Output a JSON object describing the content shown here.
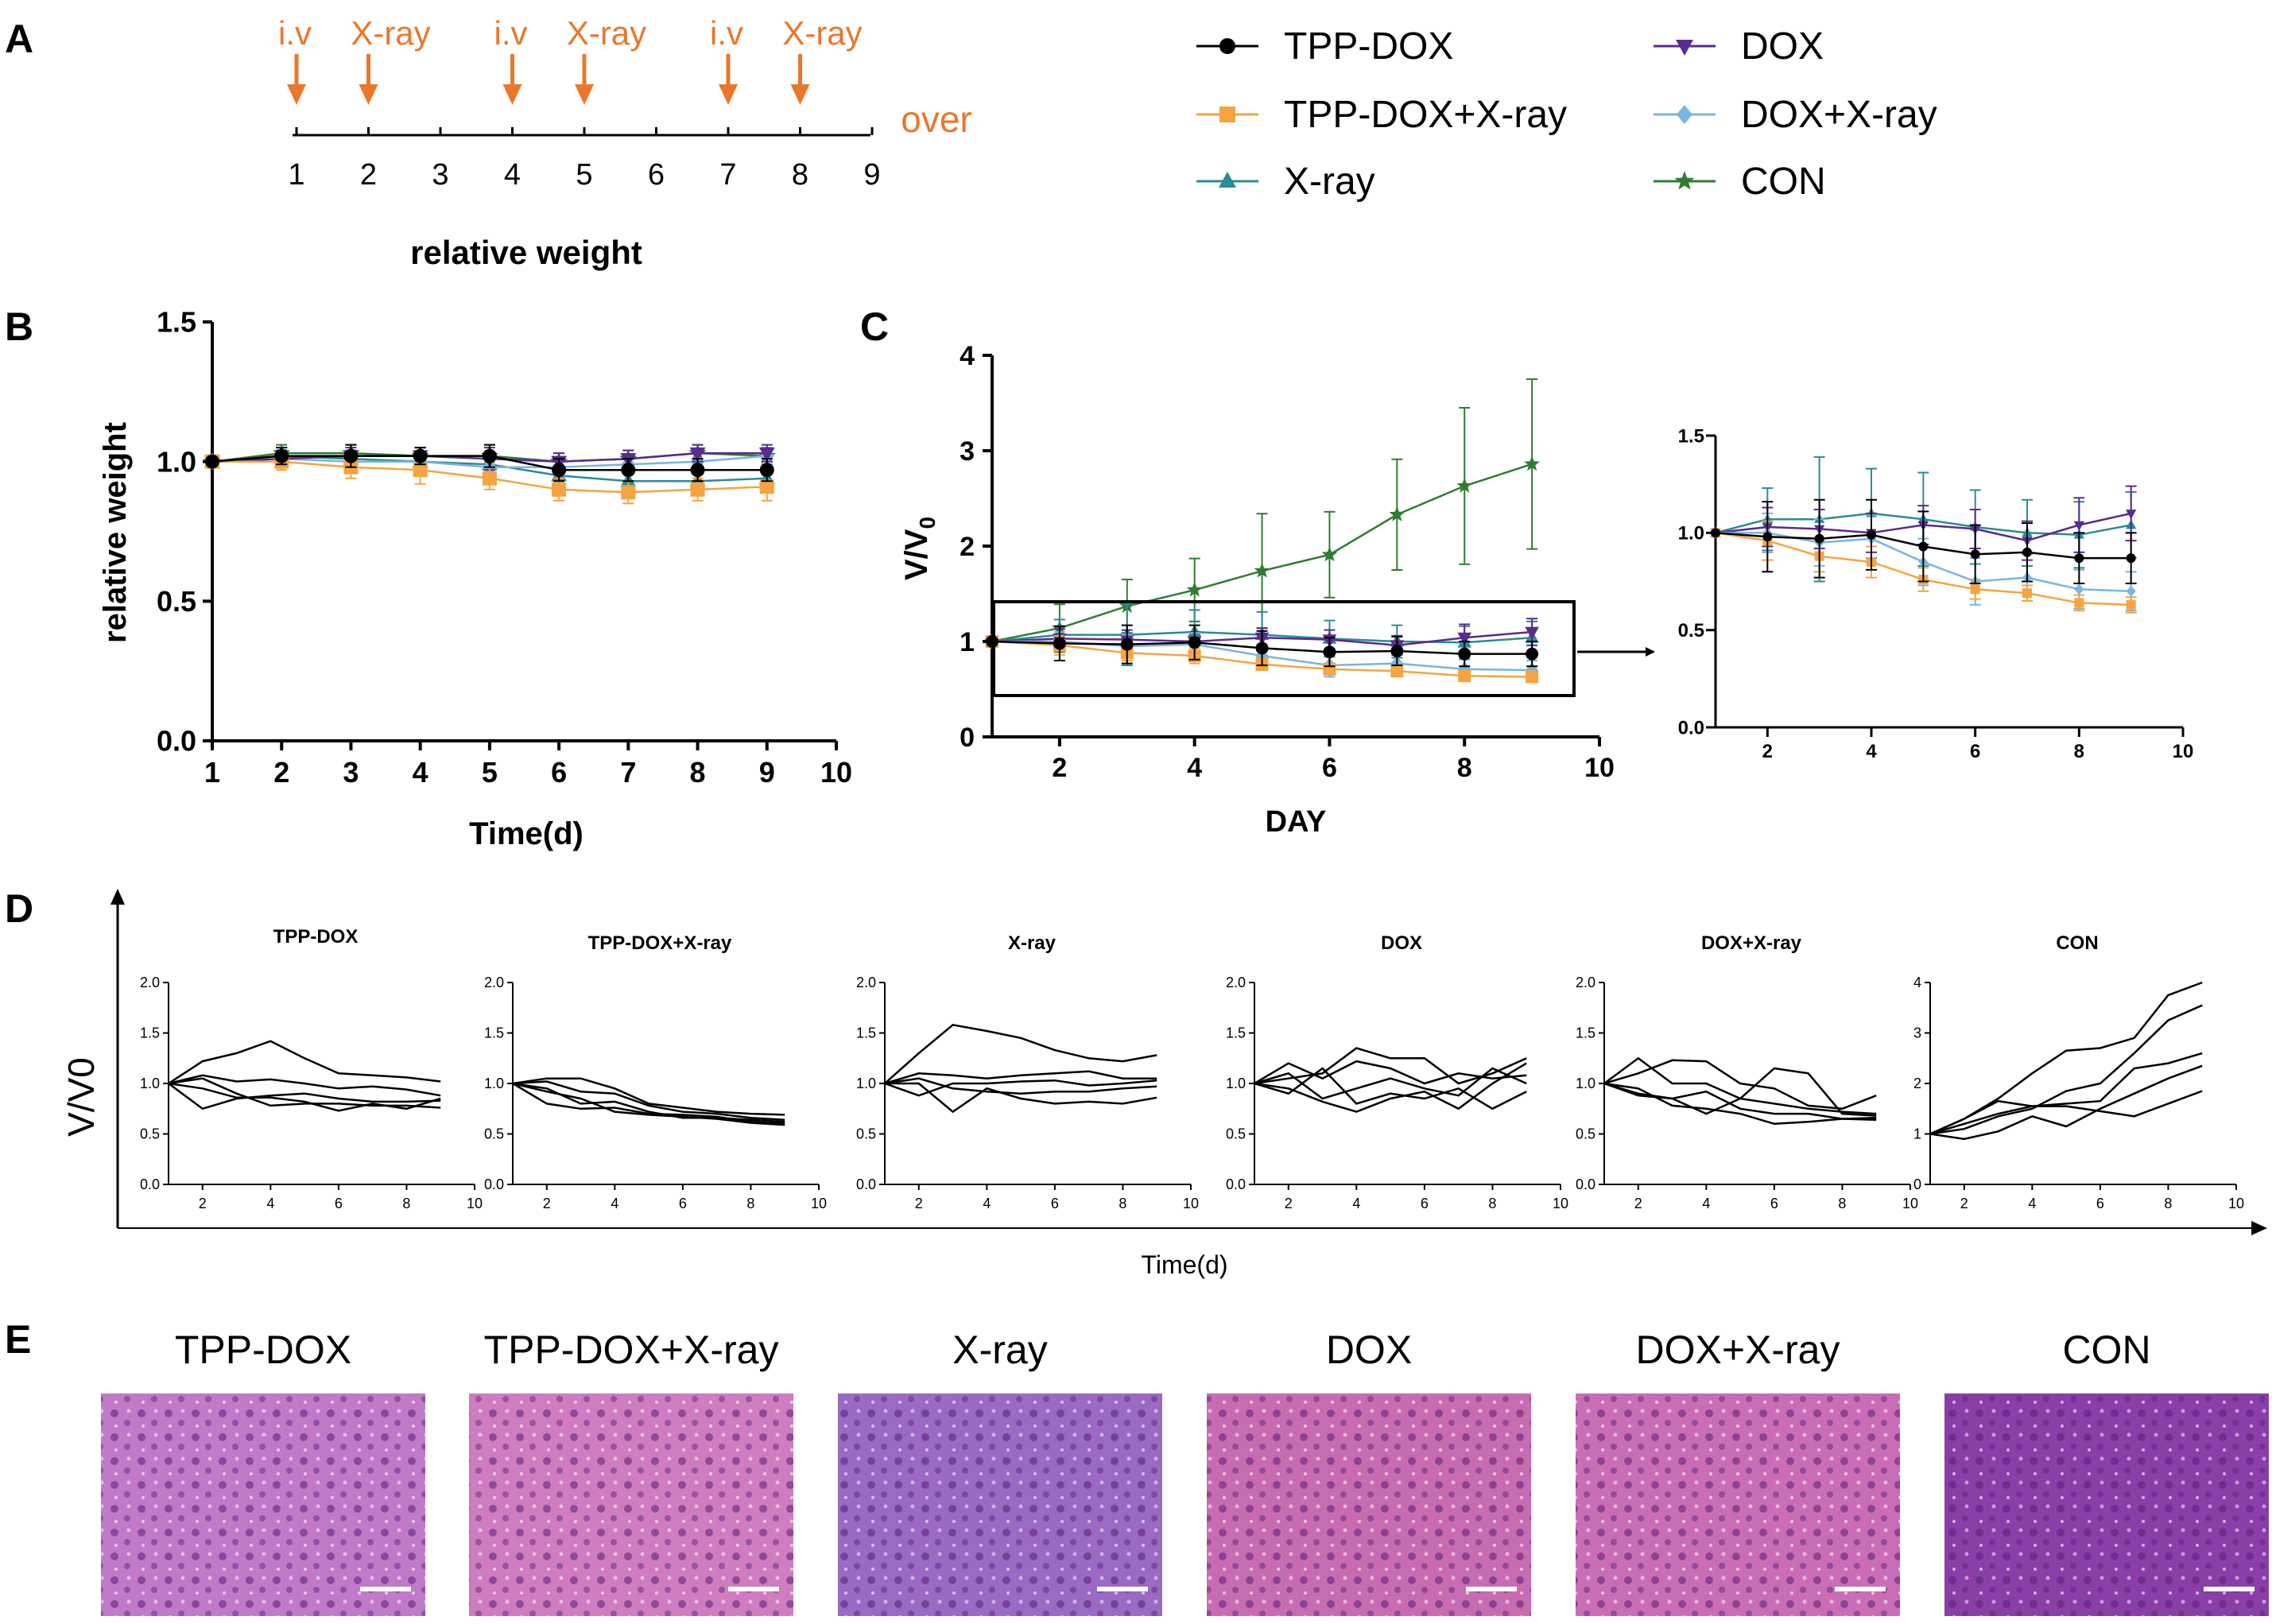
{
  "figure_letters": [
    "A",
    "B",
    "C",
    "D",
    "E"
  ],
  "colors": {
    "tpp_dox": "#000000",
    "tpp_dox_xray": "#f5a441",
    "xray": "#2a8c96",
    "dox": "#5b2a8e",
    "dox_xray": "#7ab4e0",
    "con": "#2f7d32",
    "timeline_accent": "#e9782b",
    "he_stain": "#b865b0"
  },
  "timeline": {
    "labels": [
      "i.v",
      "X-ray",
      "i.v",
      "X-ray",
      "i.v",
      "X-ray"
    ],
    "label_days": [
      1,
      2,
      4,
      5,
      7,
      8
    ],
    "ticks": [
      "1",
      "2",
      "3",
      "4",
      "5",
      "6",
      "7",
      "8",
      "9"
    ],
    "end_label": "over"
  },
  "legend": [
    {
      "label": "TPP-DOX",
      "marker": "circle",
      "color": "#000000"
    },
    {
      "label": "DOX",
      "marker": "triangle-down",
      "color": "#5b2a8e"
    },
    {
      "label": "TPP-DOX+X-ray",
      "marker": "square",
      "color": "#f5a441"
    },
    {
      "label": "DOX+X-ray",
      "marker": "diamond",
      "color": "#7ab4e0"
    },
    {
      "label": "X-ray",
      "marker": "triangle-up",
      "color": "#2a8c96"
    },
    {
      "label": "CON",
      "marker": "star",
      "color": "#2f7d32"
    }
  ],
  "chart_data": [
    {
      "id": "B",
      "type": "line",
      "title": "relative weight",
      "xlabel": "Time(d)",
      "ylabel": "relative weight",
      "xlim": [
        1,
        10
      ],
      "ylim": [
        0,
        1.5
      ],
      "xticks": [
        1,
        2,
        3,
        4,
        5,
        6,
        7,
        8,
        9,
        10
      ],
      "yticks": [
        "0.0",
        "0.5",
        "1.0",
        "1.5"
      ],
      "x": [
        1,
        2,
        3,
        4,
        5,
        6,
        7,
        8,
        9
      ],
      "series": [
        {
          "name": "CON",
          "values": [
            1.0,
            1.03,
            1.03,
            1.02,
            1.02,
            1.0,
            1.01,
            1.03,
            1.02
          ],
          "err": [
            0,
            0.03,
            0.03,
            0.03,
            0.04,
            0.03,
            0.03,
            0.03,
            0.03
          ]
        },
        {
          "name": "X-ray",
          "values": [
            1.0,
            1.02,
            1.01,
            1.0,
            0.99,
            0.95,
            0.93,
            0.93,
            0.94
          ],
          "err": [
            0,
            0.03,
            0.03,
            0.03,
            0.04,
            0.03,
            0.03,
            0.03,
            0.03
          ]
        },
        {
          "name": "DOX+X-ray",
          "values": [
            1.0,
            1.01,
            1.0,
            1.0,
            0.98,
            0.98,
            0.99,
            1.0,
            1.02
          ],
          "err": [
            0,
            0.03,
            0.03,
            0.03,
            0.04,
            0.03,
            0.03,
            0.03,
            0.03
          ]
        },
        {
          "name": "DOX",
          "values": [
            1.0,
            1.01,
            1.02,
            1.02,
            1.01,
            1.0,
            1.01,
            1.03,
            1.03
          ],
          "err": [
            0,
            0.03,
            0.03,
            0.03,
            0.04,
            0.03,
            0.03,
            0.03,
            0.03
          ]
        },
        {
          "name": "TPP-DOX+X-ray",
          "values": [
            1.0,
            1.0,
            0.98,
            0.97,
            0.94,
            0.9,
            0.89,
            0.9,
            0.91
          ],
          "err": [
            0,
            0.03,
            0.04,
            0.05,
            0.04,
            0.04,
            0.04,
            0.04,
            0.05
          ]
        },
        {
          "name": "TPP-DOX",
          "values": [
            1.0,
            1.02,
            1.02,
            1.02,
            1.02,
            0.97,
            0.97,
            0.97,
            0.97
          ],
          "err": [
            0,
            0.03,
            0.04,
            0.03,
            0.04,
            0.04,
            0.04,
            0.04,
            0.04
          ]
        }
      ]
    },
    {
      "id": "C",
      "type": "line",
      "title": "",
      "xlabel": "DAY",
      "ylabel": "V/V0",
      "xlim": [
        1,
        10
      ],
      "ylim": [
        0,
        4
      ],
      "xticks": [
        2,
        4,
        6,
        8,
        10
      ],
      "yticks": [
        "0",
        "1",
        "2",
        "3",
        "4"
      ],
      "x": [
        1,
        2,
        3,
        4,
        5,
        6,
        7,
        8,
        9
      ],
      "series": [
        {
          "name": "CON",
          "values": [
            1.0,
            1.14,
            1.37,
            1.54,
            1.74,
            1.91,
            2.33,
            2.63,
            2.86
          ],
          "err": [
            0,
            0.25,
            0.28,
            0.33,
            0.6,
            0.45,
            0.58,
            0.82,
            0.89
          ]
        },
        {
          "name": "X-ray",
          "values": [
            1.0,
            1.07,
            1.07,
            1.1,
            1.07,
            1.03,
            1.0,
            0.99,
            1.04
          ],
          "err": [
            0,
            0.16,
            0.32,
            0.23,
            0.24,
            0.19,
            0.17,
            0.17,
            0.17
          ]
        },
        {
          "name": "DOX",
          "values": [
            1.0,
            1.03,
            1.02,
            1.0,
            1.04,
            1.02,
            0.96,
            1.04,
            1.1
          ],
          "err": [
            0,
            0.1,
            0.1,
            0.1,
            0.1,
            0.1,
            0.1,
            0.14,
            0.14
          ]
        },
        {
          "name": "DOX+X-ray",
          "values": [
            1.0,
            1.0,
            0.95,
            0.97,
            0.85,
            0.75,
            0.77,
            0.71,
            0.7
          ],
          "err": [
            0,
            0.1,
            0.12,
            0.12,
            0.12,
            0.12,
            0.12,
            0.1,
            0.1
          ]
        },
        {
          "name": "TPP-DOX+X-ray",
          "values": [
            1.0,
            0.96,
            0.88,
            0.85,
            0.76,
            0.71,
            0.69,
            0.64,
            0.63
          ],
          "err": [
            0,
            0.1,
            0.08,
            0.08,
            0.06,
            0.05,
            0.04,
            0.04,
            0.04
          ]
        },
        {
          "name": "TPP-DOX",
          "values": [
            1.0,
            0.98,
            0.97,
            0.99,
            0.93,
            0.89,
            0.9,
            0.87,
            0.87
          ],
          "err": [
            0,
            0.18,
            0.2,
            0.18,
            0.18,
            0.15,
            0.15,
            0.13,
            0.13
          ]
        }
      ]
    },
    {
      "id": "C-inset",
      "type": "line",
      "title": "",
      "xlim": [
        1,
        10
      ],
      "ylim": [
        0,
        1.5
      ],
      "xticks": [
        2,
        4,
        6,
        8,
        10
      ],
      "yticks": [
        "0.0",
        "0.5",
        "1.0",
        "1.5"
      ],
      "x": [
        1,
        2,
        3,
        4,
        5,
        6,
        7,
        8,
        9
      ],
      "series": [
        {
          "name": "X-ray",
          "values": [
            1.0,
            1.07,
            1.07,
            1.1,
            1.07,
            1.03,
            1.0,
            0.99,
            1.04
          ],
          "err": [
            0,
            0.16,
            0.32,
            0.23,
            0.24,
            0.19,
            0.17,
            0.17,
            0.17
          ]
        },
        {
          "name": "DOX",
          "values": [
            1.0,
            1.03,
            1.02,
            1.0,
            1.04,
            1.02,
            0.96,
            1.04,
            1.1
          ],
          "err": [
            0,
            0.1,
            0.1,
            0.1,
            0.1,
            0.1,
            0.1,
            0.14,
            0.14
          ]
        },
        {
          "name": "DOX+X-ray",
          "values": [
            1.0,
            1.0,
            0.95,
            0.97,
            0.85,
            0.75,
            0.77,
            0.71,
            0.7
          ],
          "err": [
            0,
            0.1,
            0.12,
            0.12,
            0.12,
            0.12,
            0.12,
            0.1,
            0.1
          ]
        },
        {
          "name": "TPP-DOX+X-ray",
          "values": [
            1.0,
            0.96,
            0.88,
            0.85,
            0.76,
            0.71,
            0.69,
            0.64,
            0.63
          ],
          "err": [
            0,
            0.1,
            0.08,
            0.08,
            0.06,
            0.05,
            0.04,
            0.04,
            0.04
          ]
        },
        {
          "name": "TPP-DOX",
          "values": [
            1.0,
            0.98,
            0.97,
            0.99,
            0.93,
            0.89,
            0.9,
            0.87,
            0.87
          ],
          "err": [
            0,
            0.18,
            0.2,
            0.18,
            0.18,
            0.15,
            0.15,
            0.13,
            0.13
          ]
        }
      ]
    },
    {
      "id": "D",
      "type": "line",
      "ylabel": "V/V0",
      "xlabel": "Time(d)",
      "x": [
        1,
        2,
        3,
        4,
        5,
        6,
        7,
        8,
        9
      ],
      "panels": [
        {
          "title": "TPP-DOX",
          "ylim": [
            0,
            2
          ],
          "yticks": [
            "0.0",
            "0.5",
            "1.0",
            "1.5",
            "2.0"
          ],
          "xticks": [
            2,
            4,
            6,
            8,
            10
          ],
          "lines": [
            [
              1.0,
              1.22,
              1.3,
              1.42,
              1.25,
              1.1,
              1.08,
              1.06,
              1.02
            ],
            [
              1.0,
              1.08,
              1.02,
              1.04,
              1.0,
              0.95,
              0.97,
              0.94,
              0.88
            ],
            [
              1.0,
              0.75,
              0.85,
              0.88,
              0.9,
              0.85,
              0.82,
              0.82,
              0.83
            ],
            [
              1.0,
              1.05,
              0.9,
              0.78,
              0.8,
              0.8,
              0.78,
              0.78,
              0.76
            ],
            [
              1.0,
              0.95,
              0.86,
              0.86,
              0.82,
              0.73,
              0.8,
              0.75,
              0.85
            ]
          ]
        },
        {
          "title": "TPP-DOX+X-ray",
          "ylim": [
            0,
            2
          ],
          "yticks": [
            "0.0",
            "0.5",
            "1.0",
            "1.5",
            "2.0"
          ],
          "xticks": [
            2,
            4,
            6,
            8,
            10
          ],
          "lines": [
            [
              1.0,
              1.05,
              1.05,
              0.95,
              0.8,
              0.76,
              0.72,
              0.7,
              0.69
            ],
            [
              1.0,
              1.02,
              0.92,
              0.9,
              0.78,
              0.72,
              0.7,
              0.66,
              0.64
            ],
            [
              1.0,
              0.95,
              0.8,
              0.82,
              0.72,
              0.66,
              0.66,
              0.64,
              0.62
            ],
            [
              1.0,
              0.8,
              0.75,
              0.76,
              0.7,
              0.69,
              0.67,
              0.62,
              0.6
            ],
            [
              1.0,
              0.92,
              0.85,
              0.72,
              0.69,
              0.67,
              0.65,
              0.61,
              0.59
            ]
          ]
        },
        {
          "title": "X-ray",
          "ylim": [
            0,
            2
          ],
          "yticks": [
            "0.0",
            "0.5",
            "1.0",
            "1.5",
            "2.0"
          ],
          "xticks": [
            2,
            4,
            6,
            8,
            10
          ],
          "lines": [
            [
              1.0,
              1.3,
              1.58,
              1.52,
              1.45,
              1.33,
              1.25,
              1.22,
              1.28
            ],
            [
              1.0,
              1.1,
              1.08,
              1.05,
              1.08,
              1.1,
              1.12,
              1.05,
              1.05
            ],
            [
              1.0,
              1.05,
              0.95,
              0.92,
              0.9,
              0.92,
              0.92,
              0.95,
              0.97
            ],
            [
              1.0,
              0.88,
              1.0,
              1.0,
              1.02,
              1.03,
              0.98,
              1.0,
              1.03
            ],
            [
              1.0,
              1.0,
              0.72,
              0.95,
              0.85,
              0.8,
              0.82,
              0.8,
              0.86
            ]
          ]
        },
        {
          "title": "DOX",
          "ylim": [
            0,
            2
          ],
          "yticks": [
            "0.0",
            "0.5",
            "1.0",
            "1.5",
            "2.0"
          ],
          "xticks": [
            2,
            4,
            6,
            8,
            10
          ],
          "lines": [
            [
              1.0,
              1.05,
              1.1,
              1.35,
              1.25,
              1.25,
              1.0,
              1.1,
              1.25
            ],
            [
              1.0,
              1.2,
              1.05,
              1.22,
              1.15,
              1.0,
              1.1,
              1.05,
              1.08
            ],
            [
              1.0,
              1.1,
              0.85,
              0.95,
              1.05,
              0.95,
              0.88,
              1.15,
              1.0
            ],
            [
              1.0,
              0.9,
              1.15,
              0.8,
              0.9,
              0.85,
              0.95,
              0.75,
              0.92
            ],
            [
              1.0,
              0.95,
              0.82,
              0.72,
              0.85,
              0.92,
              0.75,
              1.0,
              1.2
            ]
          ]
        },
        {
          "title": "DOX+X-ray",
          "ylim": [
            0,
            2
          ],
          "yticks": [
            "0.0",
            "0.5",
            "1.0",
            "1.5",
            "2.0"
          ],
          "xticks": [
            2,
            4,
            6,
            8,
            10
          ],
          "lines": [
            [
              1.0,
              1.25,
              1.0,
              1.0,
              0.85,
              1.15,
              1.1,
              0.7,
              0.68
            ],
            [
              1.0,
              1.1,
              1.23,
              1.22,
              1.0,
              0.95,
              0.78,
              0.75,
              0.88
            ],
            [
              1.0,
              0.9,
              0.85,
              0.7,
              0.85,
              0.8,
              0.75,
              0.72,
              0.7
            ],
            [
              1.0,
              0.95,
              0.78,
              0.75,
              0.7,
              0.6,
              0.62,
              0.65,
              0.66
            ],
            [
              1.0,
              0.88,
              0.85,
              0.92,
              0.75,
              0.7,
              0.7,
              0.65,
              0.64
            ]
          ]
        },
        {
          "title": "CON",
          "ylim": [
            0,
            4
          ],
          "yticks": [
            "0",
            "1",
            "2",
            "3",
            "4"
          ],
          "xticks": [
            2,
            4,
            6,
            8,
            10
          ],
          "lines": [
            [
              1.0,
              1.3,
              1.7,
              2.2,
              2.65,
              2.7,
              2.9,
              3.75,
              4.0
            ],
            [
              1.0,
              1.1,
              1.35,
              1.5,
              1.85,
              2.0,
              2.6,
              3.25,
              3.55
            ],
            [
              1.0,
              1.3,
              1.65,
              1.55,
              1.6,
              1.65,
              2.3,
              2.4,
              2.6
            ],
            [
              1.0,
              0.9,
              1.05,
              1.35,
              1.15,
              1.5,
              1.8,
              2.1,
              2.35
            ],
            [
              1.0,
              1.2,
              1.4,
              1.55,
              1.55,
              1.45,
              1.35,
              1.6,
              1.85
            ]
          ]
        }
      ]
    }
  ],
  "panel_e": {
    "titles": [
      "TPP-DOX",
      "TPP-DOX+X-ray",
      "X-ray",
      "DOX",
      "DOX+X-ray",
      "CON"
    ],
    "stain_colors": [
      "#c07ac8",
      "#cf7cc0",
      "#9a6ac4",
      "#c86cb2",
      "#c96eb6",
      "#8a3ea8"
    ]
  }
}
